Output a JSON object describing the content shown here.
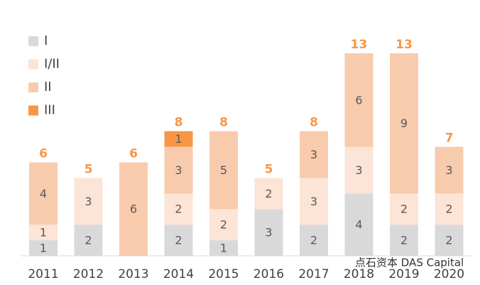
{
  "chart_data": {
    "type": "stacked-bar",
    "categories": [
      "2011",
      "2012",
      "2013",
      "2014",
      "2015",
      "2016",
      "2017",
      "2018",
      "2019",
      "2020"
    ],
    "series": [
      {
        "name": "I",
        "color": "#d9d9d9",
        "values": [
          1,
          2,
          null,
          2,
          1,
          3,
          2,
          4,
          2,
          2
        ]
      },
      {
        "name": "I/II",
        "color": "#fce4d6",
        "values": [
          1,
          3,
          null,
          2,
          2,
          2,
          3,
          3,
          2,
          2
        ]
      },
      {
        "name": "II",
        "color": "#f8cbad",
        "values": [
          4,
          null,
          6,
          3,
          5,
          null,
          3,
          6,
          9,
          3
        ]
      },
      {
        "name": "III",
        "color": "#f79646",
        "values": [
          null,
          null,
          null,
          1,
          null,
          null,
          null,
          null,
          null,
          null
        ]
      }
    ],
    "totals": [
      6,
      5,
      6,
      8,
      8,
      5,
      8,
      13,
      13,
      7
    ],
    "watermark": "点石资本 DAS Capital"
  }
}
